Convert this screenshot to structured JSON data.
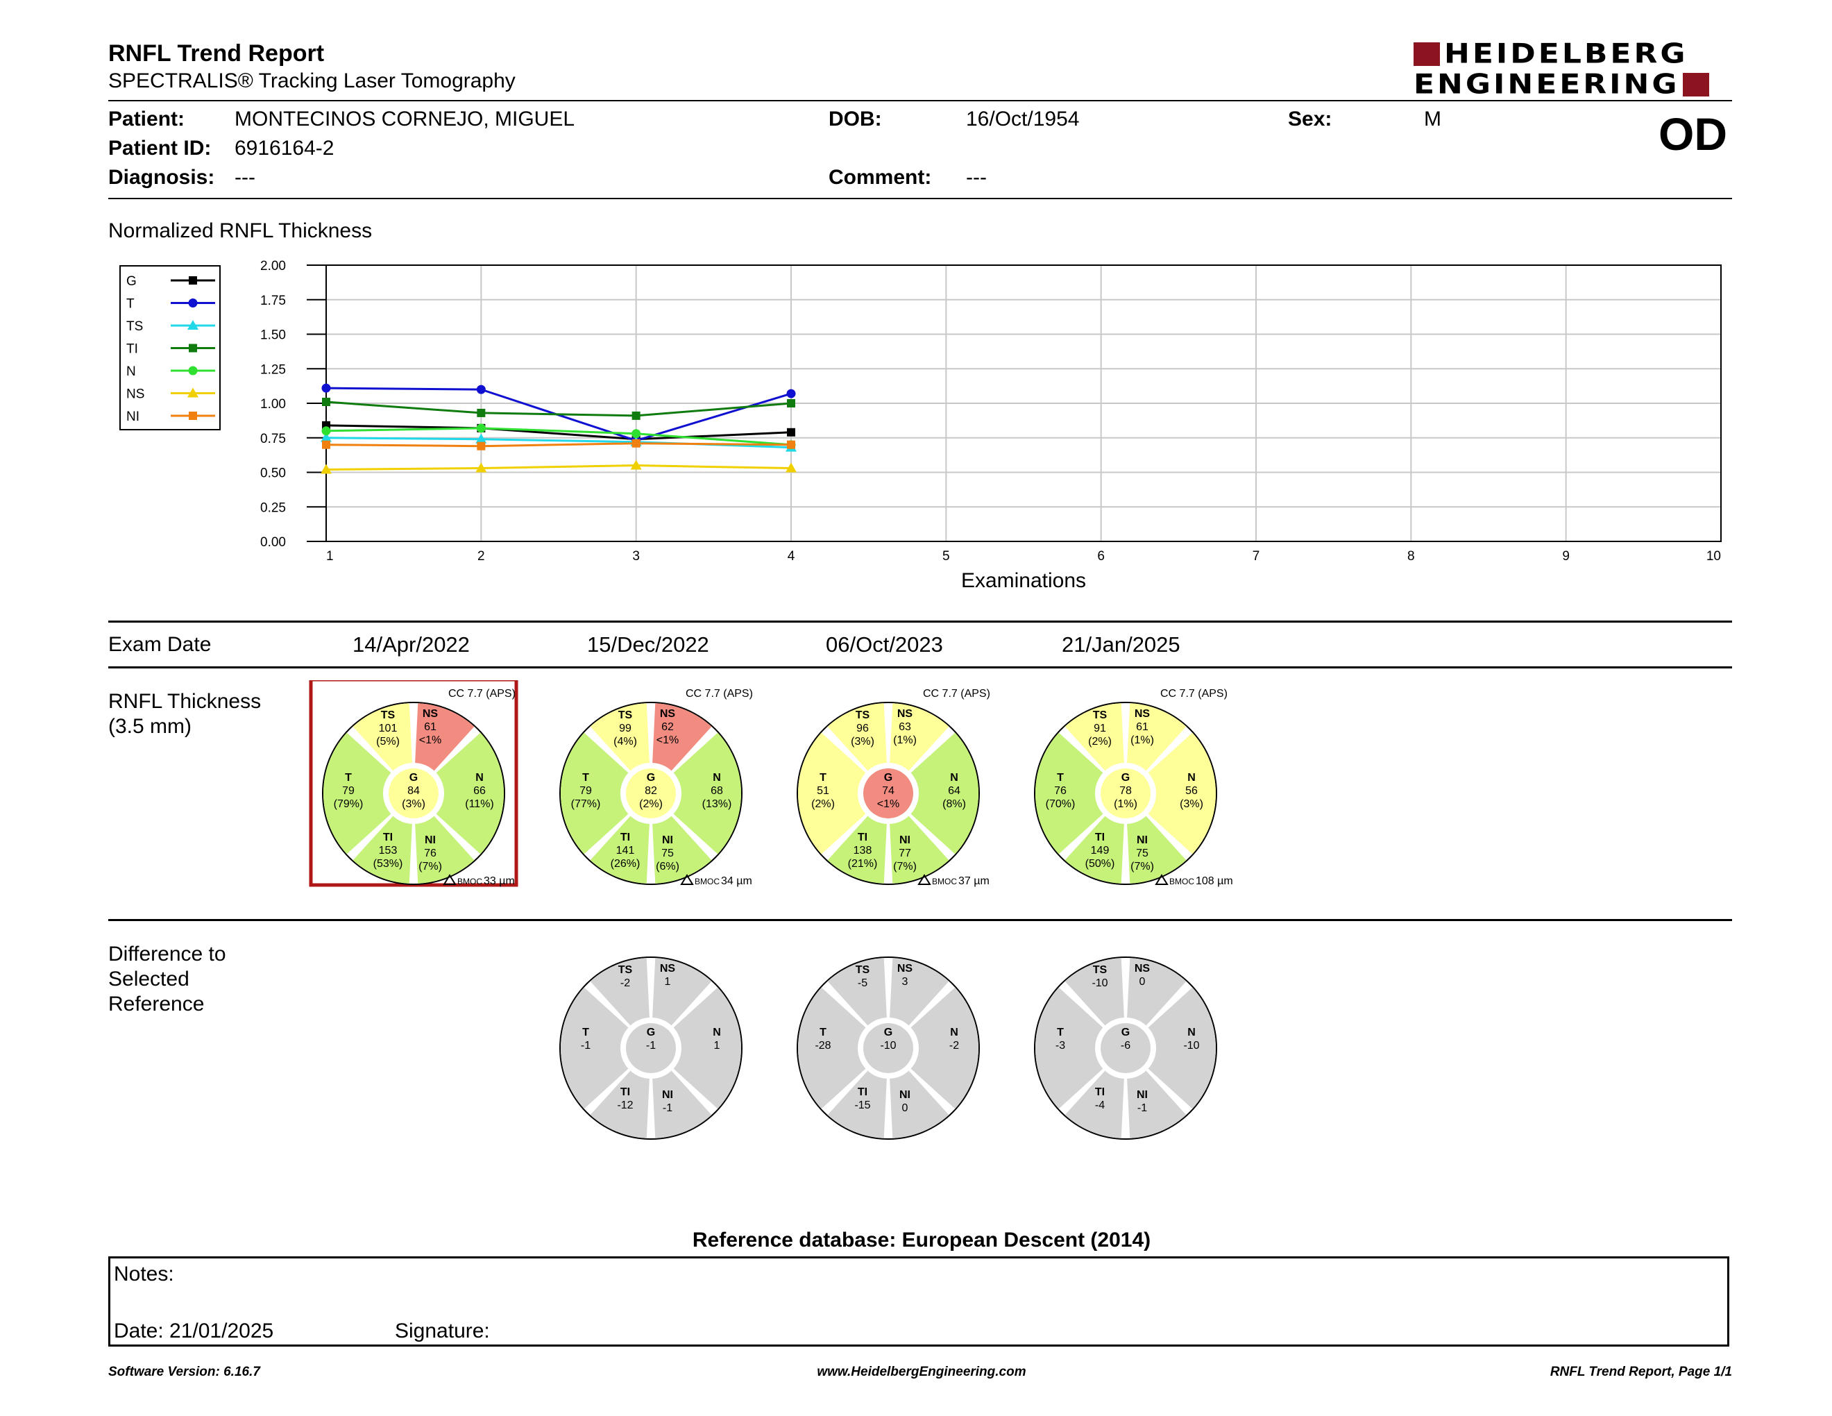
{
  "header": {
    "title": "RNFL Trend Report",
    "subtitle": "SPECTRALIS® Tracking Laser Tomography",
    "logo_line1": "HEIDELBERG",
    "logo_line2": "ENGINEERING",
    "eye": "OD"
  },
  "patient": {
    "name_label": "Patient:",
    "name": "MONTECINOS CORNEJO, MIGUEL",
    "id_label": "Patient ID:",
    "id": "6916164-2",
    "diag_label": "Diagnosis:",
    "diagnosis": "---",
    "dob_label": "DOB:",
    "dob": "16/Oct/1954",
    "comment_label": "Comment:",
    "comment": "---",
    "sex_label": "Sex:",
    "sex": "M"
  },
  "chart_section_title": "Normalized RNFL Thickness",
  "chart_data": {
    "type": "line",
    "xlabel": "Examinations",
    "ylabel": "",
    "x": [
      1,
      2,
      3,
      4
    ],
    "xlim": [
      1,
      10
    ],
    "xticks": [
      "1",
      "2",
      "3",
      "4",
      "5",
      "6",
      "7",
      "8",
      "9",
      "10"
    ],
    "ylim": [
      0,
      2
    ],
    "yticks": [
      "0.00",
      "0.25",
      "0.50",
      "0.75",
      "1.00",
      "1.25",
      "1.50",
      "1.75",
      "2.00"
    ],
    "grid": true,
    "legend_position": "left",
    "series": [
      {
        "name": "G",
        "color": "#000000",
        "marker": "square",
        "values": [
          0.84,
          0.82,
          0.74,
          0.79
        ]
      },
      {
        "name": "T",
        "color": "#1010d0",
        "marker": "circle",
        "values": [
          1.11,
          1.1,
          0.73,
          1.07
        ]
      },
      {
        "name": "TS",
        "color": "#20d8e8",
        "marker": "triangle",
        "values": [
          0.75,
          0.74,
          0.72,
          0.68
        ]
      },
      {
        "name": "TI",
        "color": "#107c10",
        "marker": "square",
        "values": [
          1.01,
          0.93,
          0.91,
          1.0
        ]
      },
      {
        "name": "N",
        "color": "#30e030",
        "marker": "circle",
        "values": [
          0.8,
          0.82,
          0.78,
          0.7
        ]
      },
      {
        "name": "NS",
        "color": "#f0d000",
        "marker": "triangle",
        "values": [
          0.52,
          0.53,
          0.55,
          0.53
        ]
      },
      {
        "name": "NI",
        "color": "#f08010",
        "marker": "square",
        "values": [
          0.7,
          0.69,
          0.71,
          0.7
        ]
      }
    ]
  },
  "exam_date_label": "Exam Date",
  "exam_dates": [
    "14/Apr/2022",
    "15/Dec/2022",
    "06/Oct/2023",
    "21/Jan/2025"
  ],
  "rnfl_label_line1": "RNFL Thickness",
  "rnfl_label_line2": "(3.5 mm)",
  "diff_label_lines": [
    "Difference to",
    "Selected",
    "Reference"
  ],
  "colors": {
    "normal": "#c6f27a",
    "borderline": "#ffff99",
    "outside": "#f28c80",
    "diff": "#d3d3d3",
    "selected": "#b01818"
  },
  "rnfl_circles": [
    {
      "cc": "CC 7.7 (APS)",
      "bmo": "33 µm",
      "selected": true,
      "sectors": {
        "TS": {
          "value": "101",
          "pct": "(5%)",
          "status": "borderline"
        },
        "NS": {
          "value": "61",
          "pct": "<1%",
          "status": "outside"
        },
        "N": {
          "value": "66",
          "pct": "(11%)",
          "status": "normal"
        },
        "NI": {
          "value": "76",
          "pct": "(7%)",
          "status": "normal"
        },
        "TI": {
          "value": "153",
          "pct": "(53%)",
          "status": "normal"
        },
        "T": {
          "value": "79",
          "pct": "(79%)",
          "status": "normal"
        },
        "G": {
          "value": "84",
          "pct": "(3%)",
          "status": "borderline"
        }
      }
    },
    {
      "cc": "CC 7.7 (APS)",
      "bmo": "34 µm",
      "selected": false,
      "sectors": {
        "TS": {
          "value": "99",
          "pct": "(4%)",
          "status": "borderline"
        },
        "NS": {
          "value": "62",
          "pct": "<1%",
          "status": "outside"
        },
        "N": {
          "value": "68",
          "pct": "(13%)",
          "status": "normal"
        },
        "NI": {
          "value": "75",
          "pct": "(6%)",
          "status": "normal"
        },
        "TI": {
          "value": "141",
          "pct": "(26%)",
          "status": "normal"
        },
        "T": {
          "value": "79",
          "pct": "(77%)",
          "status": "normal"
        },
        "G": {
          "value": "82",
          "pct": "(2%)",
          "status": "borderline"
        }
      }
    },
    {
      "cc": "CC 7.7 (APS)",
      "bmo": "37 µm",
      "selected": false,
      "sectors": {
        "TS": {
          "value": "96",
          "pct": "(3%)",
          "status": "borderline"
        },
        "NS": {
          "value": "63",
          "pct": "(1%)",
          "status": "borderline"
        },
        "N": {
          "value": "64",
          "pct": "(8%)",
          "status": "normal"
        },
        "NI": {
          "value": "77",
          "pct": "(7%)",
          "status": "normal"
        },
        "TI": {
          "value": "138",
          "pct": "(21%)",
          "status": "normal"
        },
        "T": {
          "value": "51",
          "pct": "(2%)",
          "status": "borderline"
        },
        "G": {
          "value": "74",
          "pct": "<1%",
          "status": "outside"
        }
      }
    },
    {
      "cc": "CC 7.7 (APS)",
      "bmo": "108 µm",
      "selected": false,
      "sectors": {
        "TS": {
          "value": "91",
          "pct": "(2%)",
          "status": "borderline"
        },
        "NS": {
          "value": "61",
          "pct": "(1%)",
          "status": "borderline"
        },
        "N": {
          "value": "56",
          "pct": "(3%)",
          "status": "borderline"
        },
        "NI": {
          "value": "75",
          "pct": "(7%)",
          "status": "normal"
        },
        "TI": {
          "value": "149",
          "pct": "(50%)",
          "status": "normal"
        },
        "T": {
          "value": "76",
          "pct": "(70%)",
          "status": "normal"
        },
        "G": {
          "value": "78",
          "pct": "(1%)",
          "status": "borderline"
        }
      }
    }
  ],
  "diff_circles": [
    {
      "sectors": {
        "TS": "-2",
        "NS": "1",
        "N": "1",
        "NI": "-1",
        "TI": "-12",
        "T": "-1",
        "G": "-1"
      }
    },
    {
      "sectors": {
        "TS": "-5",
        "NS": "3",
        "N": "-2",
        "NI": "0",
        "TI": "-15",
        "T": "-28",
        "G": "-10"
      }
    },
    {
      "sectors": {
        "TS": "-10",
        "NS": "0",
        "N": "-10",
        "NI": "-1",
        "TI": "-4",
        "T": "-3",
        "G": "-6"
      }
    }
  ],
  "bmo_prefix": "BMOC",
  "reference_db": "Reference database: European Descent (2014)",
  "notes": {
    "label": "Notes:",
    "date": "Date: 21/01/2025",
    "signature": "Signature:"
  },
  "footer": {
    "software": "Software Version: 6.16.7",
    "website": "www.HeidelbergEngineering.com",
    "page": "RNFL Trend Report, Page 1/1"
  }
}
